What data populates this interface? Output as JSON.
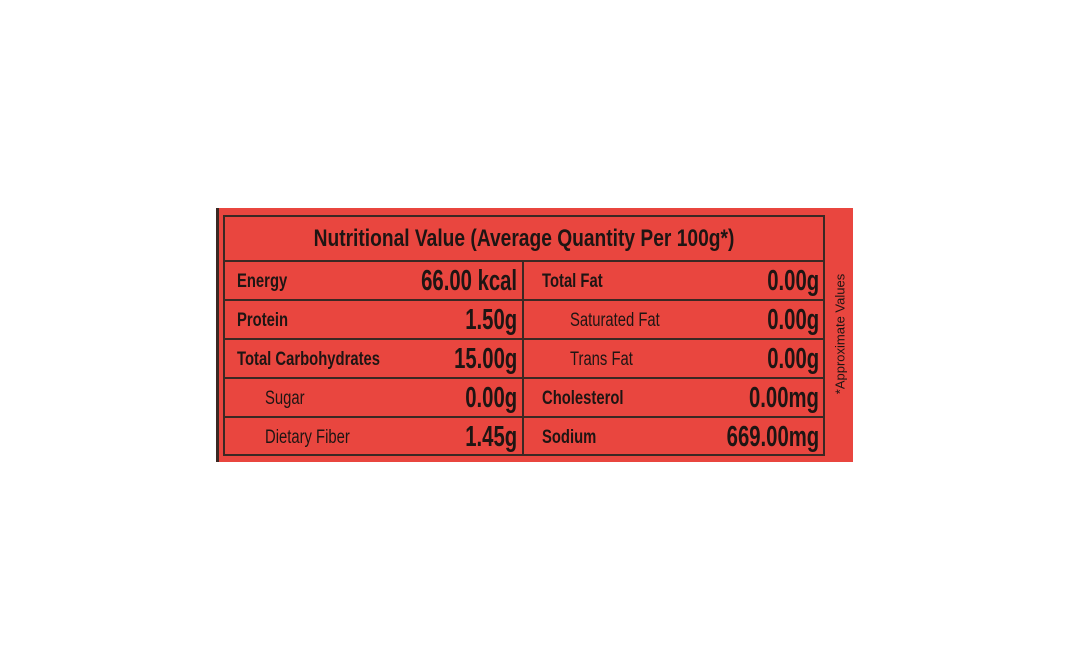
{
  "title": "Nutritional Value (Average Quantity Per 100g*)",
  "rows": [
    [
      "Energy",
      "66.00 kcal",
      "Total Fat",
      "0.00g"
    ],
    [
      "Protein",
      "1.50g",
      "Saturated Fat",
      "0.00g"
    ],
    [
      "Total Carbohydrates",
      "15.00g",
      "Trans Fat",
      "0.00g"
    ],
    [
      "Sugar",
      "0.00g",
      "Cholesterol",
      "0.00mg"
    ],
    [
      "Dietary Fiber",
      "1.45g",
      "Sodium",
      "669.00mg"
    ]
  ],
  "side_note": "*Approximate Values"
}
